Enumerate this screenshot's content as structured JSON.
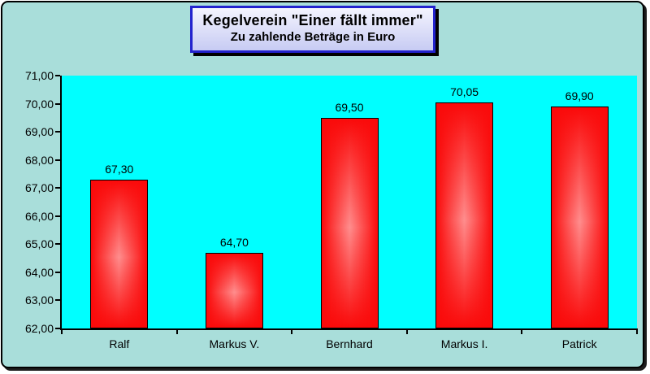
{
  "chart_data": {
    "type": "bar",
    "title": "Kegelverein \"Einer fällt immer\"",
    "subtitle": "Zu zahlende Beträge in Euro",
    "categories": [
      "Ralf",
      "Markus V.",
      "Bernhard",
      "Markus I.",
      "Patrick"
    ],
    "values": [
      67.3,
      64.7,
      69.5,
      70.05,
      69.9
    ],
    "value_labels": [
      "67,30",
      "64,70",
      "69,50",
      "70,05",
      "69,90"
    ],
    "xlabel": "",
    "ylabel": "",
    "ylim": [
      62,
      71
    ],
    "y_step": 1,
    "y_tick_labels": [
      "62,00",
      "63,00",
      "64,00",
      "65,00",
      "66,00",
      "67,00",
      "68,00",
      "69,00",
      "70,00",
      "71,00"
    ],
    "grid": false,
    "legend": "none",
    "colors": {
      "chart_background": "#A9DEDA",
      "plot_background": "#00FFFF",
      "bar_edge": "#FA0A0A",
      "bar_highlight": "#FF8E8E",
      "bar_border": "#000000",
      "axis": "#000000",
      "text": "#000000",
      "title_border": "#2323CE",
      "title_background_top": "#F4F4FE",
      "title_background_bottom": "#C7CBF3",
      "frame_border": "#000000"
    }
  }
}
